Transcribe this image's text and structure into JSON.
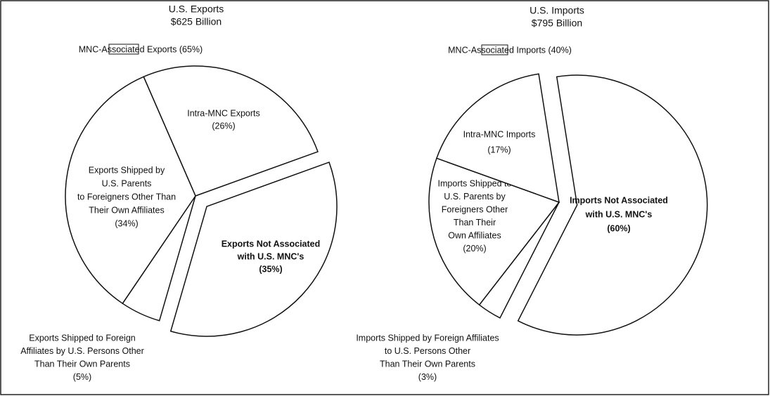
{
  "chart_data": [
    {
      "type": "pie",
      "title": "U.S. Exports",
      "subtitle": "$625 Billion",
      "legend_label": "MNC-Associated Exports (65%)",
      "color": "#ffffff",
      "categories": [
        [
          "Intra-MNC Exports"
        ],
        [
          "Exports Not Associated",
          "with U.S. MNC's"
        ],
        [
          "Exports Shipped to Foreign",
          "Affiliates by U.S. Persons Other",
          "Than Their Own Parents"
        ],
        [
          "Exports Shipped by",
          "U.S. Parents",
          "to Foreigners Other Than",
          "Their Own Affiliates"
        ]
      ],
      "values": [
        26,
        35,
        5,
        34
      ],
      "value_labels": [
        "(26%)",
        "(35%)",
        "(5%)",
        "(34%)"
      ]
    },
    {
      "type": "pie",
      "title": "U.S. Imports",
      "subtitle": "$795 Billion",
      "legend_label": "MNC-Associated Imports (40%)",
      "color": "#ffffff",
      "categories": [
        [
          "Imports Not Associated",
          "with U.S. MNC's"
        ],
        [
          "Imports Shipped by Foreign Affiliates",
          "to U.S. Persons Other",
          "Than Their Own Parents"
        ],
        [
          "Imports Shipped to",
          "U.S. Parents by",
          "Foreigners Other",
          "Than Their",
          "Own Affiliates"
        ],
        [
          "Intra-MNC Imports"
        ]
      ],
      "values": [
        60,
        3,
        20,
        17
      ],
      "value_labels": [
        "(60%)",
        "(3%)",
        "(20%)",
        "(17%)"
      ]
    }
  ]
}
